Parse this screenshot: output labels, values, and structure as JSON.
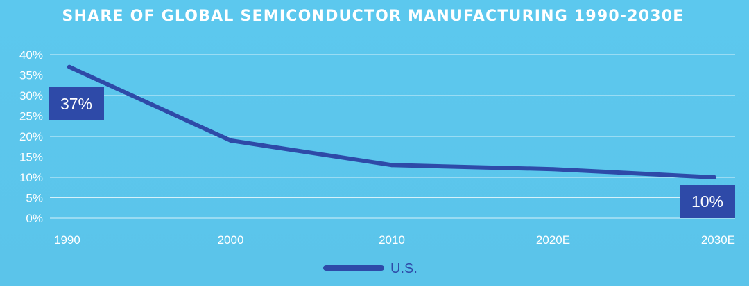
{
  "chart_data": {
    "type": "line",
    "title": "SHARE OF GLOBAL SEMICONDUCTOR MANUFACTURING 1990-2030E",
    "categories": [
      "1990",
      "2000",
      "2010",
      "2020E",
      "2030E"
    ],
    "y_ticks": [
      "0%",
      "5%",
      "10%",
      "15%",
      "20%",
      "25%",
      "30%",
      "35%",
      "40%"
    ],
    "ylim": [
      0,
      40
    ],
    "grid": true,
    "legend_position": "bottom-center",
    "series": [
      {
        "name": "U.S.",
        "values": [
          37,
          19,
          13,
          12,
          10
        ],
        "color": "#2e4aa8"
      }
    ],
    "annotations": [
      {
        "category": "1990",
        "label": "37%"
      },
      {
        "category": "2030E",
        "label": "10%"
      }
    ]
  }
}
